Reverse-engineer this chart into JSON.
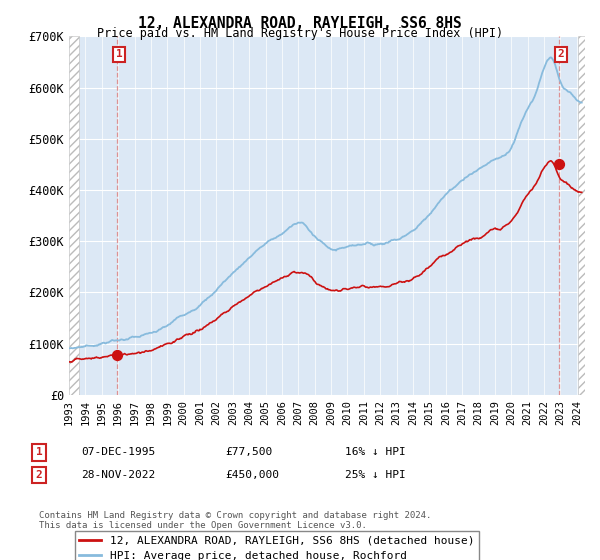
{
  "title": "12, ALEXANDRA ROAD, RAYLEIGH, SS6 8HS",
  "subtitle": "Price paid vs. HM Land Registry's House Price Index (HPI)",
  "ylim": [
    0,
    700000
  ],
  "yticks": [
    0,
    100000,
    200000,
    300000,
    400000,
    500000,
    600000,
    700000
  ],
  "ytick_labels": [
    "£0",
    "£100K",
    "£200K",
    "£300K",
    "£400K",
    "£500K",
    "£600K",
    "£700K"
  ],
  "background_color": "#ffffff",
  "plot_bg_color": "#dce8f5",
  "hatch_color": "#bbbbbb",
  "grid_color": "#ffffff",
  "hpi_color": "#88bbdd",
  "price_color": "#cc1111",
  "annotation_box_color": "#cc2222",
  "sale1_x": 1995.92,
  "sale1_y": 77500,
  "sale1_label": "1",
  "sale1_date": "07-DEC-1995",
  "sale1_price": "£77,500",
  "sale1_hpi": "16% ↓ HPI",
  "sale2_x": 2022.9,
  "sale2_y": 450000,
  "sale2_label": "2",
  "sale2_date": "28-NOV-2022",
  "sale2_price": "£450,000",
  "sale2_hpi": "25% ↓ HPI",
  "legend_label1": "12, ALEXANDRA ROAD, RAYLEIGH, SS6 8HS (detached house)",
  "legend_label2": "HPI: Average price, detached house, Rochford",
  "footer1": "Contains HM Land Registry data © Crown copyright and database right 2024.",
  "footer2": "This data is licensed under the Open Government Licence v3.0.",
  "xlim_left": 1993.0,
  "xlim_right": 2024.5,
  "hatch_left_end": 1993.58,
  "hatch_right_start": 2024.1
}
